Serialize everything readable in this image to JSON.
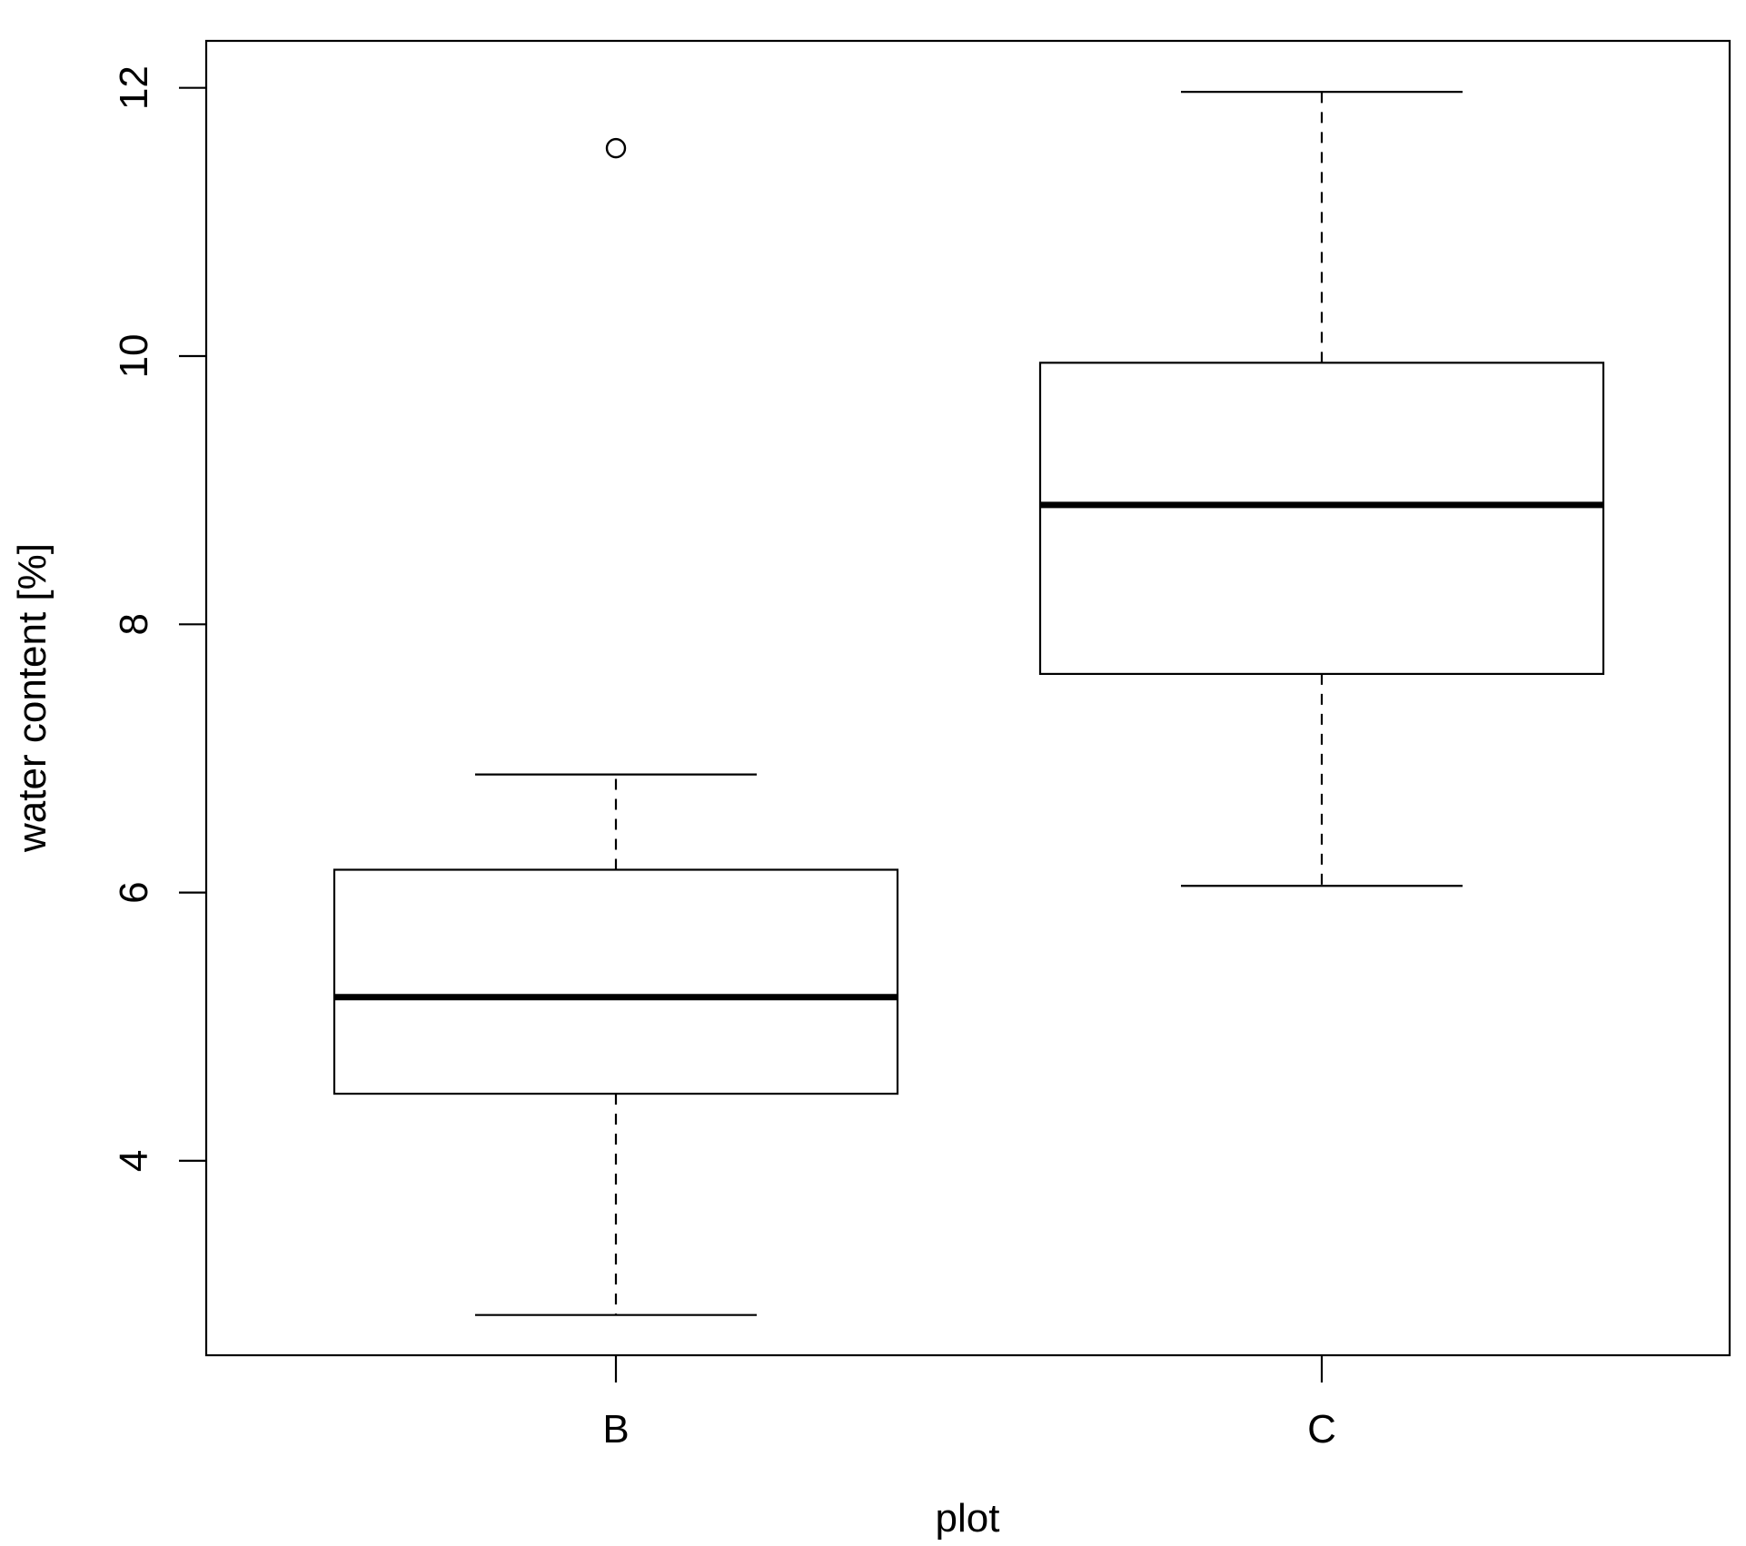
{
  "chart_data": {
    "type": "boxplot",
    "title": "",
    "xlabel": "plot",
    "ylabel": "water content [%]",
    "ylim": [
      2.55,
      12.35
    ],
    "yticks": [
      4,
      6,
      8,
      10,
      12
    ],
    "ytick_labels": [
      "4",
      "6",
      "8",
      "10",
      "12"
    ],
    "grid": false,
    "legend": "none",
    "categories": [
      "B",
      "C"
    ],
    "boxes": [
      {
        "category": "B",
        "whisker_low": 2.85,
        "q1": 4.5,
        "median": 5.22,
        "q3": 6.17,
        "whisker_high": 6.88,
        "outliers": [
          11.55
        ]
      },
      {
        "category": "C",
        "whisker_low": 6.05,
        "q1": 7.63,
        "median": 8.89,
        "q3": 9.95,
        "whisker_high": 11.97,
        "outliers": []
      }
    ],
    "colors": {
      "stroke": "#000000",
      "fill": "#ffffff"
    }
  }
}
